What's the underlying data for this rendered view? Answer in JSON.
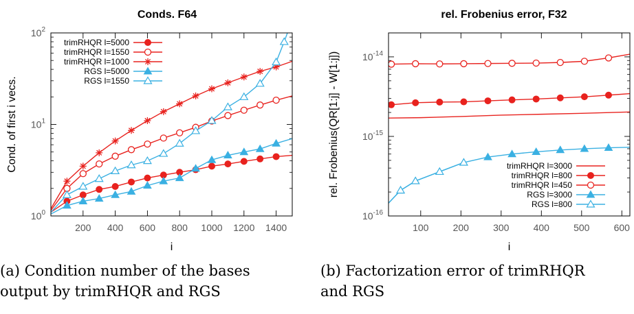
{
  "chart_data": [
    {
      "type": "line",
      "title": "Conds. F64",
      "xlabel": "i",
      "ylabel": "Cond. of first i vecs.",
      "xlim": [
        0,
        1500
      ],
      "ylim": [
        1,
        100
      ],
      "y_scale": "log",
      "x_ticks": [
        200,
        400,
        600,
        800,
        1000,
        1200,
        1400
      ],
      "y_ticks": [
        {
          "value": 1,
          "base": "10",
          "exp": "0"
        },
        {
          "value": 10,
          "base": "10",
          "exp": "1"
        },
        {
          "value": 100,
          "base": "10",
          "exp": "2"
        }
      ],
      "legend_position": "top-left",
      "series": [
        {
          "name": "trimRHQR l=5000",
          "color": "#e8221e",
          "marker": "filled-circle",
          "x": [
            0,
            100,
            200,
            300,
            400,
            500,
            600,
            700,
            800,
            900,
            1000,
            1100,
            1200,
            1300,
            1400,
            1500
          ],
          "y": [
            1.1,
            1.45,
            1.7,
            1.95,
            2.1,
            2.35,
            2.6,
            2.8,
            3.0,
            3.2,
            3.5,
            3.7,
            3.95,
            4.2,
            4.45,
            4.6
          ]
        },
        {
          "name": "trimRHQR l=1550",
          "color": "#e8221e",
          "marker": "open-circle",
          "x": [
            0,
            100,
            200,
            300,
            400,
            500,
            600,
            700,
            800,
            900,
            1000,
            1100,
            1200,
            1300,
            1400,
            1500
          ],
          "y": [
            1.15,
            2.0,
            2.9,
            3.7,
            4.5,
            5.3,
            6.1,
            7.1,
            8.1,
            9.3,
            10.9,
            12.5,
            14.3,
            16.3,
            18.4,
            20.5
          ]
        },
        {
          "name": "trimRHQR l=1000",
          "color": "#e8221e",
          "marker": "star",
          "x": [
            0,
            100,
            200,
            300,
            400,
            500,
            600,
            700,
            800,
            900,
            1000,
            1100,
            1200,
            1300,
            1400,
            1500
          ],
          "y": [
            1.2,
            2.4,
            3.5,
            4.9,
            6.6,
            8.6,
            11.0,
            13.8,
            16.8,
            20.5,
            24.5,
            28.5,
            33.0,
            38.0,
            42.5,
            49.0
          ]
        },
        {
          "name": "RGS l=5000",
          "color": "#3ab0e2",
          "marker": "filled-triangle",
          "x": [
            0,
            100,
            200,
            300,
            400,
            500,
            600,
            700,
            800,
            900,
            1000,
            1100,
            1200,
            1300,
            1400,
            1500
          ],
          "y": [
            1.05,
            1.3,
            1.45,
            1.55,
            1.7,
            1.85,
            2.15,
            2.4,
            2.6,
            3.3,
            4.1,
            4.6,
            5.0,
            5.4,
            6.2,
            7.0
          ]
        },
        {
          "name": "RGS l=1550",
          "color": "#3ab0e2",
          "marker": "open-triangle",
          "x": [
            0,
            100,
            200,
            300,
            400,
            500,
            600,
            700,
            800,
            900,
            1000,
            1100,
            1200,
            1300,
            1400,
            1450,
            1500
          ],
          "y": [
            1.1,
            1.7,
            2.1,
            2.55,
            3.1,
            3.6,
            4.0,
            4.8,
            6.2,
            8.5,
            11.0,
            15.5,
            20.0,
            28.0,
            48.0,
            80.0,
            140.0
          ]
        }
      ]
    },
    {
      "type": "line",
      "title": "rel. Frobenius error, F32",
      "xlabel": "i",
      "ylabel": "rel. Frobenius(QR[1:j] - W[1:j])",
      "xlim": [
        20,
        620
      ],
      "ylim": [
        1e-16,
        2e-14
      ],
      "y_scale": "log",
      "x_ticks": [
        100,
        200,
        300,
        400,
        500,
        600
      ],
      "y_ticks": [
        {
          "value": 1e-16,
          "base": "10",
          "exp": "-16"
        },
        {
          "value": 1e-15,
          "base": "10",
          "exp": "-15"
        },
        {
          "value": 1e-14,
          "base": "10",
          "exp": "-14"
        }
      ],
      "legend_position": "bottom-right",
      "series": [
        {
          "name": "trimRHQR l=3000",
          "color": "#e8221e",
          "marker": "none",
          "x": [
            20,
            100,
            200,
            300,
            400,
            500,
            620
          ],
          "y": [
            1.7e-15,
            1.72e-15,
            1.78e-15,
            1.85e-15,
            1.9e-15,
            1.95e-15,
            2.03e-15
          ]
        },
        {
          "name": "trimRHQR l=800",
          "color": "#e8221e",
          "marker": "filled-circle",
          "x": [
            27,
            87,
            147,
            207,
            267,
            327,
            387,
            447,
            507,
            567,
            620
          ],
          "y": [
            2.5e-15,
            2.65e-15,
            2.7e-15,
            2.72e-15,
            2.8e-15,
            2.88e-15,
            2.95e-15,
            3.05e-15,
            3.15e-15,
            3.3e-15,
            3.45e-15
          ]
        },
        {
          "name": "trimRHQR l=450",
          "color": "#e8221e",
          "marker": "open-circle",
          "x": [
            27,
            87,
            147,
            207,
            267,
            327,
            387,
            447,
            507,
            567,
            620
          ],
          "y": [
            8.1e-15,
            8.2e-15,
            8.15e-15,
            8.2e-15,
            8.25e-15,
            8.3e-15,
            8.35e-15,
            8.5e-15,
            8.8e-15,
            9.7e-15,
            1.08e-14
          ]
        },
        {
          "name": "RGS l=3000",
          "color": "#3ab0e2",
          "marker": "filled-triangle",
          "x": [
            20,
            50,
            87,
            147,
            207,
            267,
            327,
            387,
            447,
            507,
            567,
            620
          ],
          "y": [
            1.45e-16,
            2.1e-16,
            2.75e-16,
            3.6e-16,
            4.7e-16,
            5.5e-16,
            6e-16,
            6.4e-16,
            6.75e-16,
            7e-16,
            7.2e-16,
            7.3e-16
          ]
        },
        {
          "name": "RGS l=800",
          "color": "#3ab0e2",
          "marker": "open-triangle",
          "x": [
            20,
            50,
            87,
            147,
            207
          ],
          "y": [
            1.45e-16,
            2.1e-16,
            2.75e-16,
            3.6e-16,
            4.7e-16
          ]
        }
      ]
    }
  ],
  "captions": [
    {
      "lines": [
        "(a) Condition number of the bases",
        "output by trimRHQR and RGS"
      ]
    },
    {
      "lines": [
        "(b) Factorization error of trimRHQR",
        "and RGS"
      ]
    }
  ]
}
